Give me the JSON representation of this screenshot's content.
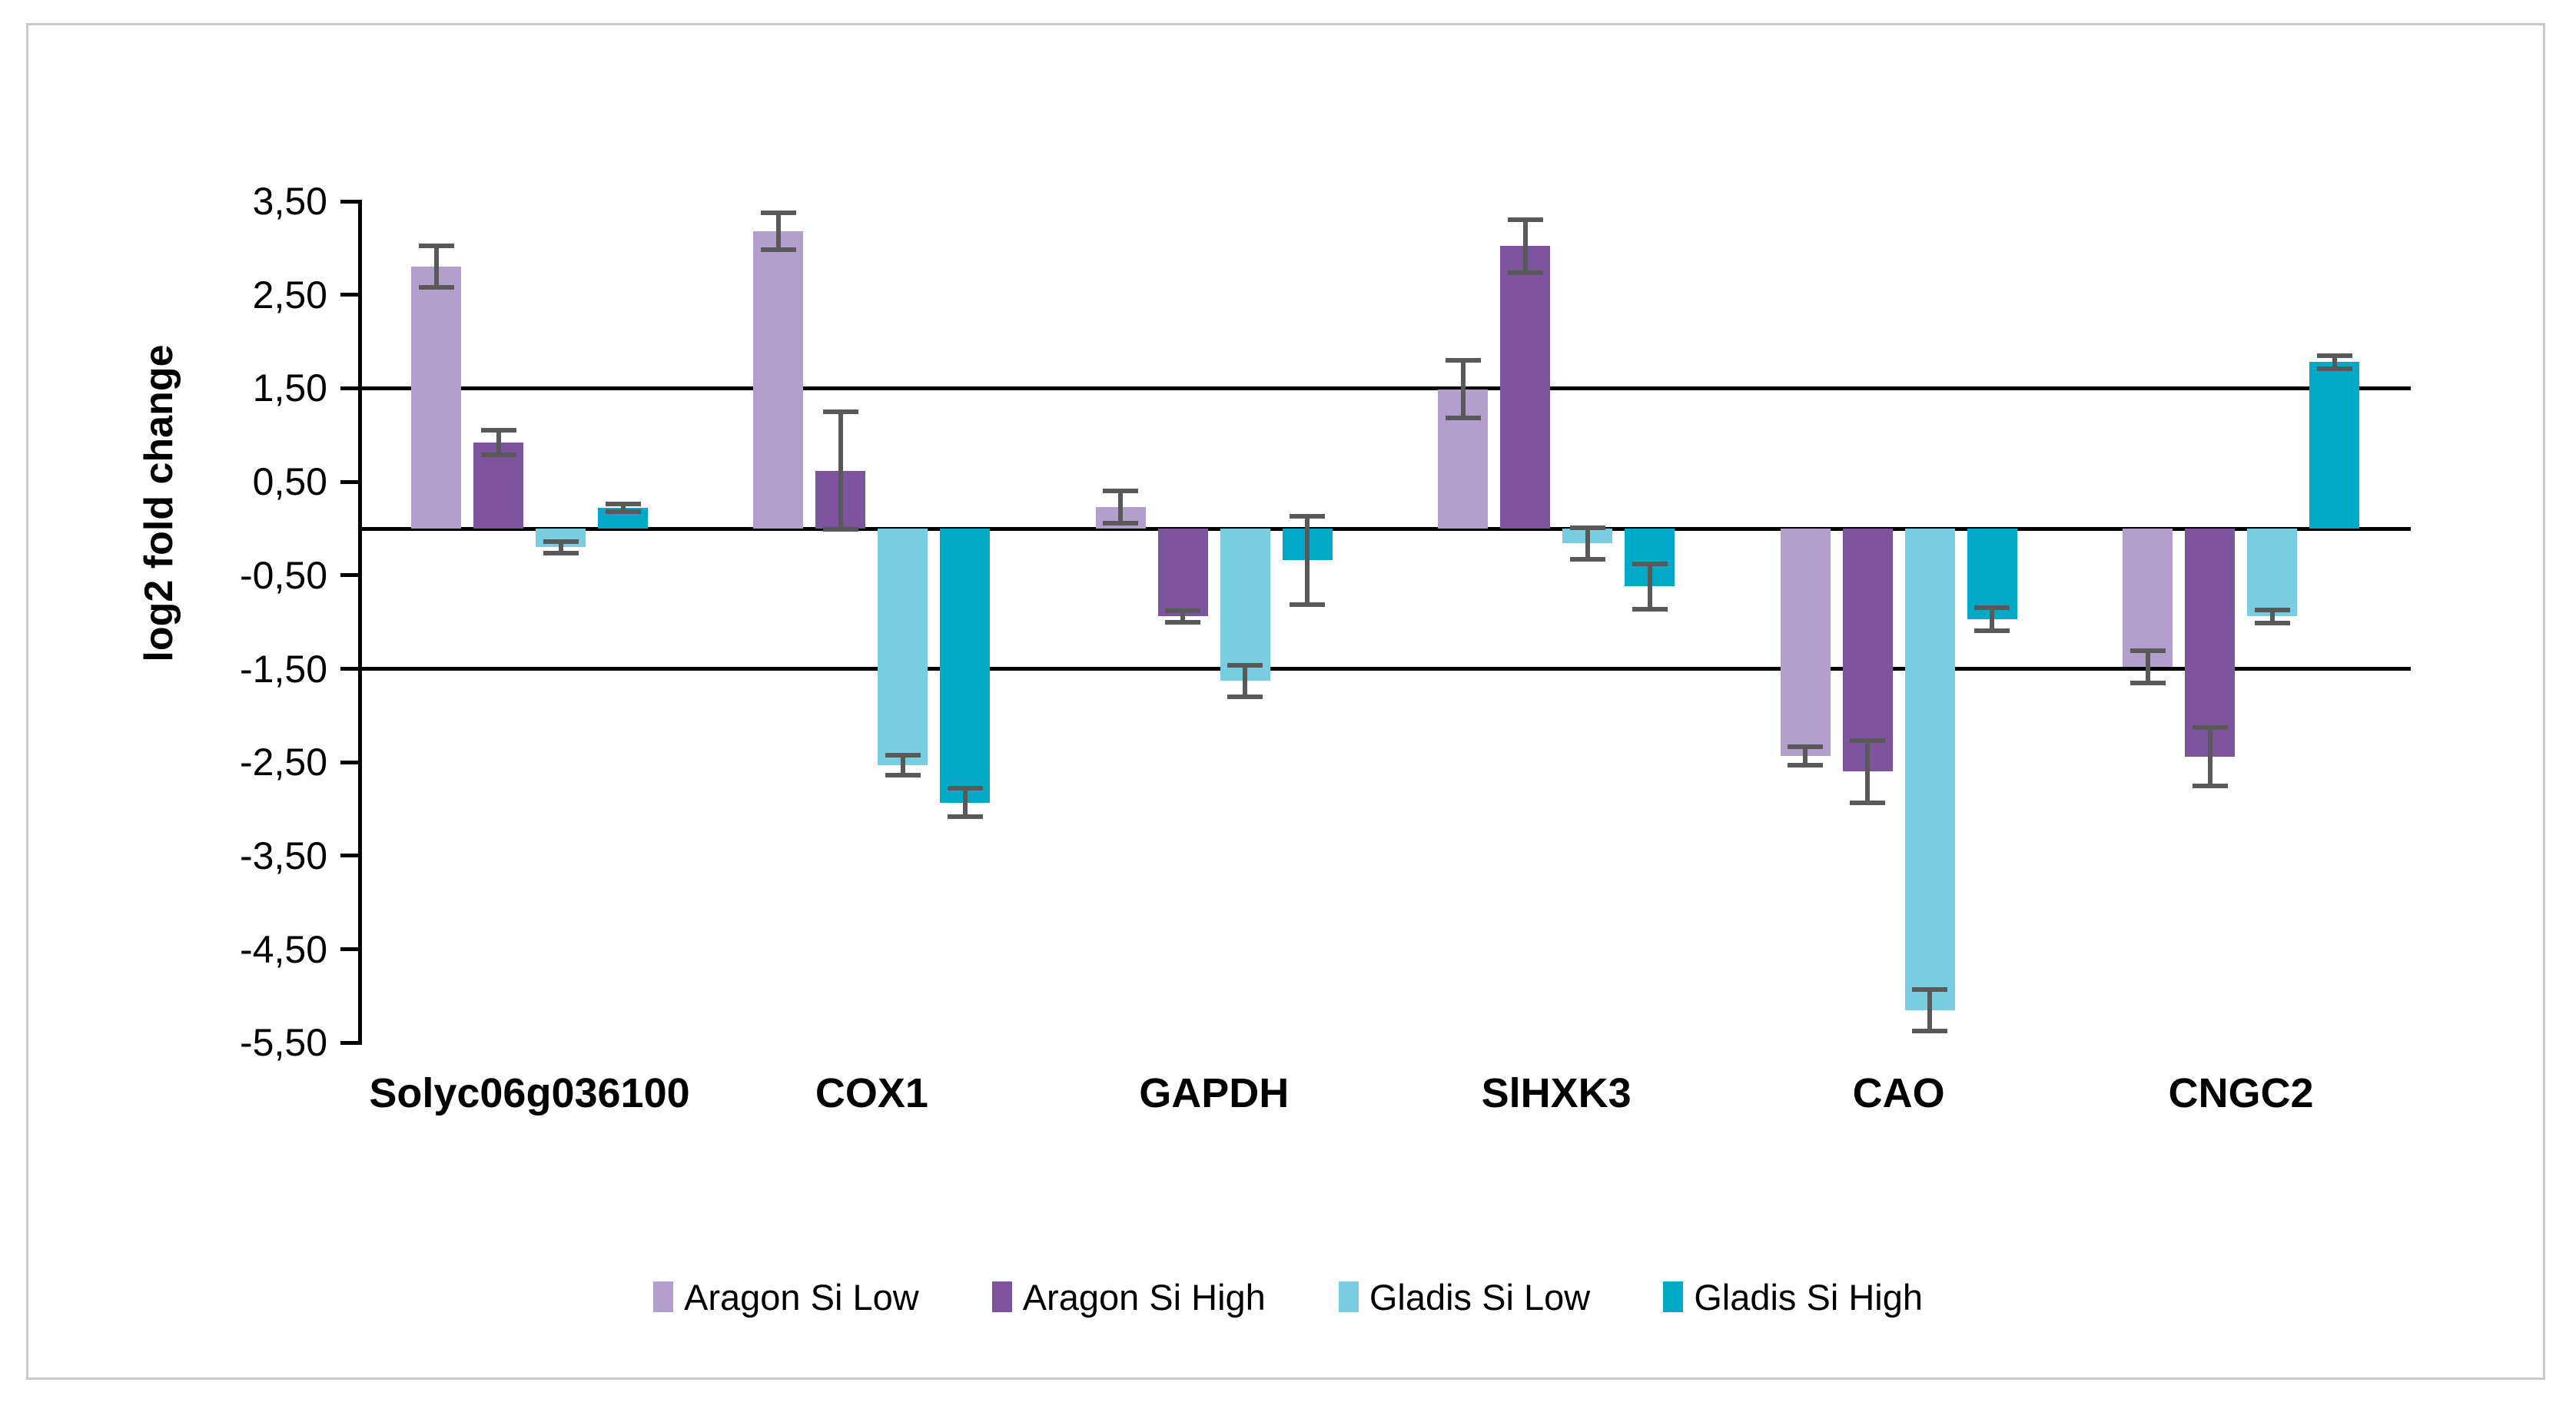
{
  "figure_type": "grouped-bar-chart-with-error-bars",
  "y_axis": {
    "title": "log2 fold change",
    "tick_labels": [
      "3,50",
      "2,50",
      "1,50",
      "0,50",
      "-0,50",
      "-1,50",
      "-2,50",
      "-3,50",
      "-4,50",
      "-5,50"
    ],
    "tick_values": [
      3.5,
      2.5,
      1.5,
      0.5,
      -0.5,
      -1.5,
      -2.5,
      -3.5,
      -4.5,
      -5.5
    ]
  },
  "chart_data": {
    "type": "bar",
    "title": "",
    "xlabel": "",
    "ylabel": "log2 fold change",
    "categories": [
      "Solyc06g036100",
      "COX1",
      "GAPDH",
      "SlHXK3",
      "CAO",
      "CNGC2"
    ],
    "series": [
      {
        "name": "Aragon Si Low",
        "color": "#b39fce",
        "values": [
          2.8,
          3.18,
          0.23,
          1.49,
          -2.43,
          -1.48
        ],
        "errors": [
          0.22,
          0.2,
          0.17,
          0.31,
          0.1,
          0.17
        ]
      },
      {
        "name": "Aragon Si High",
        "color": "#7e549f",
        "values": [
          0.92,
          0.62,
          -0.94,
          3.02,
          -2.6,
          -2.44
        ],
        "errors": [
          0.13,
          0.63,
          0.06,
          0.28,
          0.33,
          0.31
        ]
      },
      {
        "name": "Gladis Si Low",
        "color": "#79cde0",
        "values": [
          -0.2,
          -2.53,
          -1.63,
          -0.16,
          -5.15,
          -0.94
        ],
        "errors": [
          0.06,
          0.11,
          0.17,
          0.17,
          0.22,
          0.07
        ]
      },
      {
        "name": "Gladis Si High",
        "color": "#00a9c5",
        "values": [
          0.22,
          -2.93,
          -0.34,
          -0.62,
          -0.97,
          1.78
        ],
        "errors": [
          0.04,
          0.15,
          0.47,
          0.24,
          0.12,
          0.07
        ]
      }
    ],
    "ylim": [
      -5.5,
      3.5
    ],
    "ytick_step": 1.0,
    "decimal_separator": ",",
    "reference_lines": [
      1.5,
      0,
      -1.5
    ],
    "grid": false,
    "legend_position": "bottom",
    "error_bar_color": "#595959",
    "axis_color": "#000000"
  }
}
